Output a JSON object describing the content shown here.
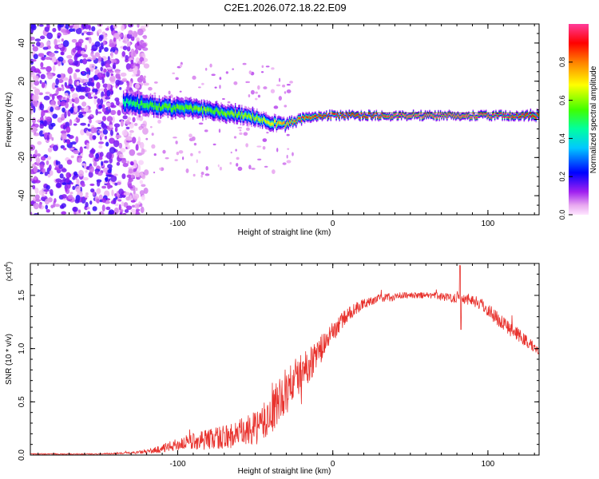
{
  "figure": {
    "title": "C2E1.2026.072.18.22.E09",
    "colors": {
      "axis": "#000000",
      "snr_line": "#e8322d",
      "background": "#ffffff"
    }
  },
  "chart_data": [
    {
      "type": "heatmap",
      "title": "C2E1.2026.072.18.22.E09",
      "xlabel": "Height of straight line (km)",
      "ylabel": "Frequency (Hz)",
      "xlim": [
        -195,
        133
      ],
      "ylim": [
        -50,
        50
      ],
      "x_ticks": [
        -100,
        0,
        100
      ],
      "y_ticks": [
        -40,
        -20,
        0,
        20,
        40
      ],
      "colorbar": {
        "label": "Normalized spectral amplitude",
        "range": [
          0,
          1
        ],
        "ticks": [
          0.0,
          0.2,
          0.4,
          0.6,
          0.8
        ],
        "colors": [
          "#f3c9f5",
          "#a020f0",
          "#0000ff",
          "#00c8ff",
          "#00ff80",
          "#80ff00",
          "#ffff00",
          "#ff8000",
          "#ff0000",
          "#ff3c78",
          "#ff4fa0"
        ]
      },
      "noise_region_x": [
        -195,
        -120
      ],
      "ridge": {
        "x": [
          -135,
          -125,
          -115,
          -105,
          -95,
          -85,
          -75,
          -65,
          -55,
          -45,
          -38,
          -32,
          -25,
          -15,
          -5,
          5,
          15,
          30,
          50,
          70,
          90,
          110,
          133
        ],
        "freq": [
          9,
          8,
          7,
          6,
          6,
          5,
          4,
          3,
          2,
          0,
          -2,
          -3,
          -1,
          1,
          2,
          2,
          2,
          2,
          2,
          2,
          2,
          2,
          2
        ],
        "amp": [
          0.45,
          0.5,
          0.55,
          0.55,
          0.55,
          0.6,
          0.55,
          0.6,
          0.6,
          0.65,
          0.7,
          0.75,
          0.8,
          0.85,
          0.9,
          0.9,
          0.9,
          0.95,
          1.0,
          1.0,
          1.0,
          0.95,
          0.9
        ],
        "width": [
          9,
          9,
          8,
          8,
          8,
          7,
          7,
          7,
          7,
          6,
          6,
          5,
          4,
          4,
          3,
          3,
          3,
          3,
          3,
          3,
          3,
          3,
          4
        ]
      }
    },
    {
      "type": "line",
      "xlabel": "Height of straight line (km)",
      "ylabel": "SNR (10 * v/v)",
      "y_multiplier": "(x10",
      "y_multiplier_exp": "4",
      "y_multiplier_close": ")",
      "xlim": [
        -195,
        133
      ],
      "ylim": [
        0,
        1.8
      ],
      "x_ticks": [
        -100,
        0,
        100
      ],
      "y_ticks": [
        0.0,
        0.5,
        1.0,
        1.5
      ],
      "series": [
        {
          "name": "SNR",
          "x": [
            -195,
            -170,
            -150,
            -130,
            -120,
            -110,
            -100,
            -90,
            -80,
            -70,
            -60,
            -50,
            -45,
            -40,
            -35,
            -30,
            -25,
            -20,
            -15,
            -10,
            -5,
            0,
            5,
            10,
            15,
            20,
            25,
            30,
            35,
            40,
            45,
            50,
            55,
            60,
            65,
            70,
            75,
            80,
            85,
            90,
            95,
            100,
            105,
            110,
            115,
            120,
            125,
            130,
            133
          ],
          "values": [
            0.01,
            0.01,
            0.01,
            0.02,
            0.03,
            0.06,
            0.1,
            0.13,
            0.15,
            0.17,
            0.2,
            0.25,
            0.3,
            0.38,
            0.5,
            0.6,
            0.7,
            0.78,
            0.85,
            0.95,
            1.05,
            1.15,
            1.25,
            1.32,
            1.38,
            1.42,
            1.45,
            1.47,
            1.48,
            1.49,
            1.5,
            1.5,
            1.5,
            1.5,
            1.5,
            1.49,
            1.48,
            1.48,
            1.47,
            1.46,
            1.42,
            1.37,
            1.3,
            1.24,
            1.18,
            1.12,
            1.07,
            1.01,
            0.98
          ],
          "noise": [
            0.005,
            0.005,
            0.005,
            0.01,
            0.02,
            0.04,
            0.06,
            0.08,
            0.1,
            0.12,
            0.14,
            0.16,
            0.18,
            0.2,
            0.22,
            0.22,
            0.2,
            0.18,
            0.16,
            0.14,
            0.12,
            0.1,
            0.08,
            0.07,
            0.06,
            0.05,
            0.04,
            0.04,
            0.04,
            0.04,
            0.03,
            0.03,
            0.03,
            0.03,
            0.03,
            0.04,
            0.04,
            0.05,
            0.05,
            0.06,
            0.06,
            0.07,
            0.07,
            0.07,
            0.07,
            0.07,
            0.06,
            0.05,
            0.04
          ]
        }
      ]
    }
  ]
}
